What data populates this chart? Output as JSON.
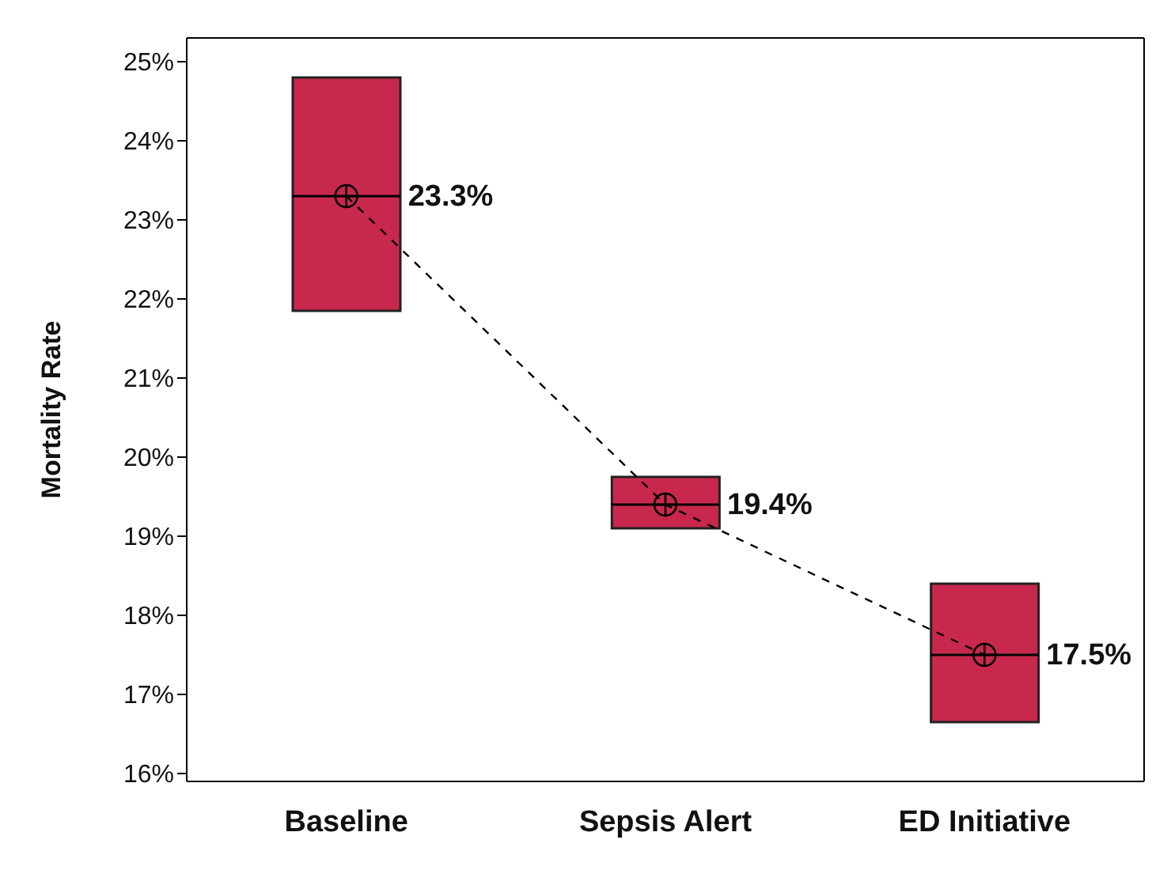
{
  "chart_data": {
    "type": "bar",
    "ylabel": "Mortality Rate",
    "categories": [
      "Baseline",
      "Sepsis Alert",
      "ED Initiative"
    ],
    "series": [
      {
        "color": "#c8284c",
        "base": [
          21.85,
          19.1,
          16.65
        ],
        "values": [
          2.95,
          0.65,
          1.75
        ]
      },
      {
        "type": "line",
        "color": "#000000",
        "values": [
          23.3,
          19.4,
          17.5
        ],
        "value_labels": [
          "23.3%",
          "19.4%",
          "17.5%"
        ],
        "marker": "circle",
        "line_style": "dashed"
      }
    ],
    "ylim": [
      15.9,
      25.3
    ],
    "yticks": [
      {
        "value": 16,
        "label": "16%"
      },
      {
        "value": 17,
        "label": "17%"
      },
      {
        "value": 18,
        "label": "18%"
      },
      {
        "value": 19,
        "label": "19%"
      },
      {
        "value": 20,
        "label": "20%"
      },
      {
        "value": 21,
        "label": "21%"
      },
      {
        "value": 22,
        "label": "22%"
      },
      {
        "value": 23,
        "label": "23%"
      },
      {
        "value": 24,
        "label": "24%"
      },
      {
        "value": 25,
        "label": "25%"
      }
    ],
    "grid": false
  }
}
